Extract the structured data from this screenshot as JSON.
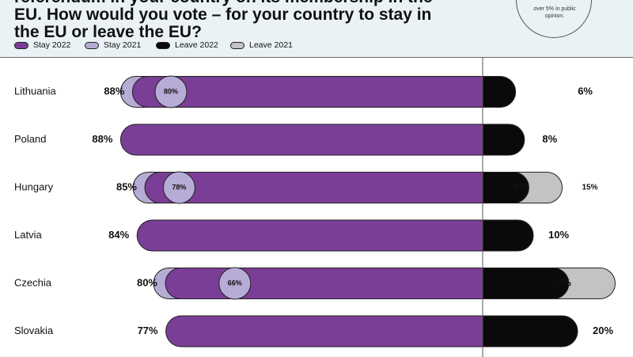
{
  "title": "referendum in your country on its membership in the EU. How would you vote – for your country to stay in the EU or leave the EU?",
  "note": "over 5% in public\nopinion.",
  "colors": {
    "stay2022": "#7a3e96",
    "stay2021": "#b7acd6",
    "leave2022": "#0a0a0a",
    "leave2021": "#c3c3c3",
    "header_bg": "#eaf2f5",
    "plot_bg": "#ffffff"
  },
  "legend": [
    {
      "label": "Stay 2022",
      "color": "#7a3e96"
    },
    {
      "label": "Stay  2021",
      "color": "#b7acd6"
    },
    {
      "label": "Leave 2022",
      "color": "#0a0a0a"
    },
    {
      "label": "Leave 2021",
      "color": "#c3c3c3"
    }
  ],
  "chart_data": {
    "type": "bar",
    "categories": [
      "Lithuania",
      "Poland",
      "Hungary",
      "Latvia",
      "Czechia",
      "Slovakia"
    ],
    "series": [
      {
        "name": "Stay 2022",
        "values": [
          88,
          88,
          85,
          84,
          80,
          77
        ],
        "labels": [
          "88%",
          "88%",
          "85%",
          "84%",
          "80%",
          "77%"
        ]
      },
      {
        "name": "Stay  2021",
        "values": [
          80,
          null,
          78,
          null,
          66,
          null
        ],
        "labels": [
          "80%",
          "",
          "78%",
          "",
          "66%",
          ""
        ]
      },
      {
        "name": "Leave 2022",
        "values": [
          6,
          8,
          9,
          10,
          18,
          20
        ],
        "labels": [
          "6%",
          "8%",
          "9%",
          "10%",
          "18%",
          "20%"
        ]
      },
      {
        "name": "Leave 2021",
        "values": [
          null,
          null,
          15,
          null,
          25,
          null
        ],
        "labels": [
          "",
          "",
          "15%",
          "",
          "",
          ""
        ]
      }
    ],
    "orientation": "horizontal-diverging",
    "xlabel": "",
    "ylabel": "",
    "grid": false,
    "legend_position": "top-left"
  }
}
